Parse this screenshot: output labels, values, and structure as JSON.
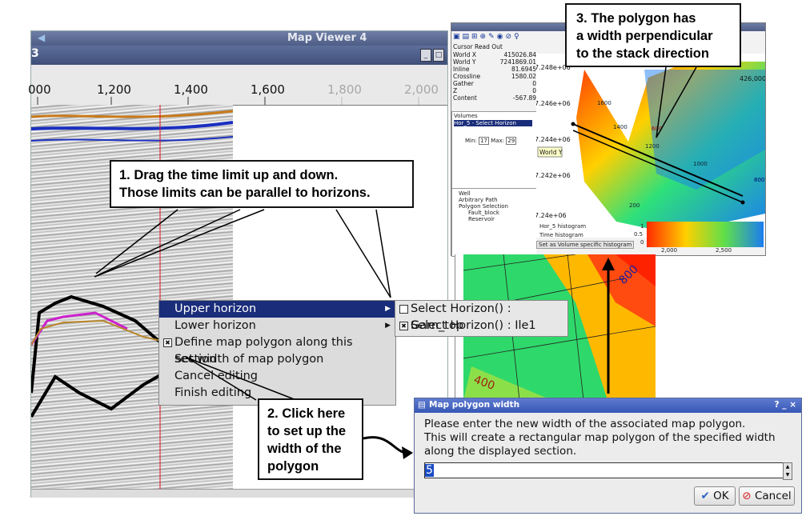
{
  "map_viewer": {
    "title": "Map Viewer 4",
    "subtitle_fragment": "3",
    "ruler_ticks": [
      {
        "label": "000",
        "dim": false
      },
      {
        "label": "1,200",
        "dim": false
      },
      {
        "label": "1,400",
        "dim": false
      },
      {
        "label": "1,600",
        "dim": false
      },
      {
        "label": "1,800",
        "dim": true
      },
      {
        "label": "2,000",
        "dim": true
      }
    ]
  },
  "context_menu": {
    "items": [
      {
        "label": "Upper horizon",
        "submenu": true,
        "selected": true
      },
      {
        "label": "Lower horizon",
        "submenu": true
      },
      {
        "label": "Define map polygon along this section",
        "checked": true
      },
      {
        "label": "Set width of map polygon"
      },
      {
        "label": "Cancel editing"
      },
      {
        "label": "Finish editing"
      }
    ],
    "submenu": [
      {
        "label": "Select Horizon() : Garn_top",
        "checked": false
      },
      {
        "label": "Select Horizon() : Ile1",
        "checked": true
      }
    ]
  },
  "callouts": {
    "c1": "1. Drag the time limit up and down.\nThose limits can be parallel to horizons.",
    "c2": "2. Click here\nto set up the\nwidth of the\npolygon",
    "c3": "3. The polygon has\na width perpendicular\nto the stack direction"
  },
  "viewer3d": {
    "readout_title": "Cursor Read Out",
    "readout": [
      {
        "k": "World X",
        "v": "415026.84"
      },
      {
        "k": "World Y",
        "v": "7241869.01"
      },
      {
        "k": "Inline",
        "v": "81.6945"
      },
      {
        "k": "Crossline",
        "v": "1580.02"
      },
      {
        "k": "Gather",
        "v": "0"
      },
      {
        "k": "Z",
        "v": "0"
      },
      {
        "k": "Content",
        "v": "-567.89"
      }
    ],
    "volumes_title": "Volumes",
    "volume_item": "Hor_5 - Select Horizon",
    "min_label": "Min:",
    "min_value": "17",
    "max_label": "Max:",
    "max_value": "29",
    "tree": [
      "Well",
      "Arbitrary Path",
      "Polygon Selection",
      "Fault_block",
      "Reservoir"
    ],
    "y_ticks": [
      "7.248e+06",
      "7.246e+06",
      "7.244e+06",
      "7.242e+06",
      "7.24e+06"
    ],
    "x_tick_top": "426,000",
    "tooltip": "World Y",
    "contours": [
      "1600",
      "1400",
      "600",
      "1200",
      "1000",
      "800",
      "200"
    ],
    "hist_options": [
      "Hor_5 histogram",
      "Time histogram"
    ],
    "hist_button": "Set as Volume specific histogram",
    "hist_axis": [
      "2,000",
      "2,500"
    ],
    "hist_y": [
      "1",
      "0.5",
      "0"
    ]
  },
  "lower_map": {
    "labels": [
      "800",
      "400"
    ]
  },
  "dialog": {
    "title": "Map polygon width",
    "message": "Please enter the new width of the associated map polygon.\nThis will create a rectangular map polygon of the specified width\nalong the displayed section.",
    "value": "5",
    "ok_label": "OK",
    "cancel_label": "Cancel",
    "title_icons": "? _ ×"
  }
}
